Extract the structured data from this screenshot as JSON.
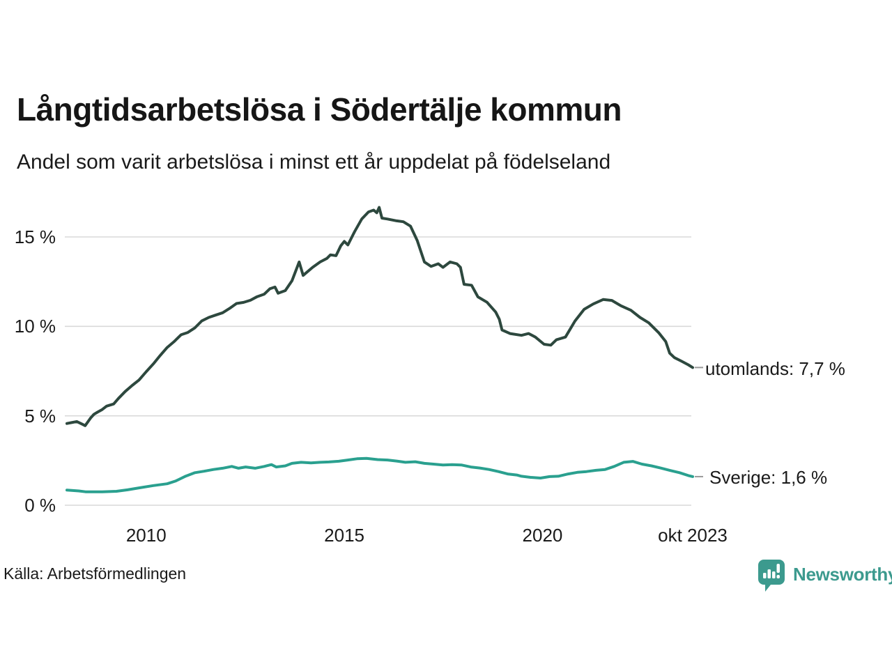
{
  "header": {
    "title": "Långtidsarbetslösa i Södertälje kommun",
    "subtitle": "Andel som varit arbetslösa i minst ett år uppdelat på födelseland"
  },
  "footer": {
    "source": "Källa: Arbetsförmedlingen",
    "brand_name": "Newsworthy",
    "brand_color": "#3c9a8e"
  },
  "chart_data": {
    "type": "line",
    "title": "Långtidsarbetslösa i Södertälje kommun",
    "subtitle": "Andel som varit arbetslösa i minst ett år uppdelat på födelseland",
    "unit": "%",
    "x_domain": [
      2008.0,
      2023.79
    ],
    "ylim": [
      0,
      17.5
    ],
    "grid": "horizontal",
    "gridline_color": "#d9d9d9",
    "connector_color": "#999999",
    "legend_position": "right-end-labels",
    "y_ticks": [
      {
        "v": 0,
        "label": "0 %"
      },
      {
        "v": 5,
        "label": "5 %"
      },
      {
        "v": 10,
        "label": "10 %"
      },
      {
        "v": 15,
        "label": "15 %"
      }
    ],
    "x_ticks": [
      {
        "v": 2010,
        "label": "2010"
      },
      {
        "v": 2015,
        "label": "2015"
      },
      {
        "v": 2020,
        "label": "2020"
      },
      {
        "v": 2023.79,
        "label": "okt 2023"
      }
    ],
    "series": [
      {
        "name": "utomlands",
        "label": "utomlands: 7,7 %",
        "last_value": 7.7,
        "color": "#2d483e",
        "points": [
          [
            2008.0,
            4.57
          ],
          [
            2008.12,
            4.62
          ],
          [
            2008.25,
            4.68
          ],
          [
            2008.37,
            4.55
          ],
          [
            2008.46,
            4.45
          ],
          [
            2008.6,
            4.88
          ],
          [
            2008.68,
            5.08
          ],
          [
            2008.77,
            5.2
          ],
          [
            2008.89,
            5.35
          ],
          [
            2009.0,
            5.54
          ],
          [
            2009.18,
            5.66
          ],
          [
            2009.3,
            5.97
          ],
          [
            2009.47,
            6.36
          ],
          [
            2009.65,
            6.7
          ],
          [
            2009.82,
            7.0
          ],
          [
            2010.0,
            7.46
          ],
          [
            2010.18,
            7.9
          ],
          [
            2010.35,
            8.36
          ],
          [
            2010.53,
            8.82
          ],
          [
            2010.7,
            9.14
          ],
          [
            2010.88,
            9.53
          ],
          [
            2011.05,
            9.66
          ],
          [
            2011.23,
            9.92
          ],
          [
            2011.4,
            10.3
          ],
          [
            2011.58,
            10.5
          ],
          [
            2011.75,
            10.63
          ],
          [
            2011.93,
            10.76
          ],
          [
            2012.1,
            11.0
          ],
          [
            2012.28,
            11.28
          ],
          [
            2012.46,
            11.34
          ],
          [
            2012.63,
            11.46
          ],
          [
            2012.8,
            11.66
          ],
          [
            2012.98,
            11.8
          ],
          [
            2013.12,
            12.1
          ],
          [
            2013.25,
            12.2
          ],
          [
            2013.33,
            11.85
          ],
          [
            2013.51,
            12.0
          ],
          [
            2013.68,
            12.55
          ],
          [
            2013.86,
            13.6
          ],
          [
            2013.96,
            12.85
          ],
          [
            2014.2,
            13.3
          ],
          [
            2014.39,
            13.6
          ],
          [
            2014.56,
            13.8
          ],
          [
            2014.65,
            14.0
          ],
          [
            2014.79,
            13.95
          ],
          [
            2014.91,
            14.5
          ],
          [
            2015.0,
            14.75
          ],
          [
            2015.09,
            14.55
          ],
          [
            2015.26,
            15.3
          ],
          [
            2015.44,
            16.0
          ],
          [
            2015.61,
            16.4
          ],
          [
            2015.74,
            16.5
          ],
          [
            2015.82,
            16.35
          ],
          [
            2015.88,
            16.65
          ],
          [
            2015.95,
            16.05
          ],
          [
            2016.09,
            16.0
          ],
          [
            2016.32,
            15.9
          ],
          [
            2016.49,
            15.85
          ],
          [
            2016.67,
            15.6
          ],
          [
            2016.84,
            14.8
          ],
          [
            2017.02,
            13.6
          ],
          [
            2017.19,
            13.35
          ],
          [
            2017.37,
            13.5
          ],
          [
            2017.49,
            13.3
          ],
          [
            2017.67,
            13.6
          ],
          [
            2017.84,
            13.5
          ],
          [
            2017.93,
            13.3
          ],
          [
            2018.02,
            12.35
          ],
          [
            2018.21,
            12.3
          ],
          [
            2018.37,
            11.65
          ],
          [
            2018.6,
            11.35
          ],
          [
            2018.82,
            10.8
          ],
          [
            2018.91,
            10.4
          ],
          [
            2018.98,
            9.8
          ],
          [
            2019.18,
            9.6
          ],
          [
            2019.47,
            9.5
          ],
          [
            2019.65,
            9.6
          ],
          [
            2019.82,
            9.4
          ],
          [
            2020.04,
            9.0
          ],
          [
            2020.21,
            8.95
          ],
          [
            2020.35,
            9.25
          ],
          [
            2020.58,
            9.4
          ],
          [
            2020.82,
            10.3
          ],
          [
            2021.05,
            10.95
          ],
          [
            2021.28,
            11.25
          ],
          [
            2021.53,
            11.5
          ],
          [
            2021.75,
            11.45
          ],
          [
            2021.98,
            11.15
          ],
          [
            2022.23,
            10.9
          ],
          [
            2022.46,
            10.5
          ],
          [
            2022.68,
            10.2
          ],
          [
            2022.93,
            9.65
          ],
          [
            2023.11,
            9.15
          ],
          [
            2023.21,
            8.5
          ],
          [
            2023.33,
            8.25
          ],
          [
            2023.51,
            8.05
          ],
          [
            2023.68,
            7.85
          ],
          [
            2023.79,
            7.7
          ]
        ]
      },
      {
        "name": "Sverige",
        "label": "Sverige: 1,6 %",
        "last_value": 1.6,
        "color": "#2aa08f",
        "points": [
          [
            2008.0,
            0.85
          ],
          [
            2008.3,
            0.8
          ],
          [
            2008.47,
            0.75
          ],
          [
            2008.89,
            0.75
          ],
          [
            2009.25,
            0.78
          ],
          [
            2009.53,
            0.86
          ],
          [
            2009.82,
            0.97
          ],
          [
            2010.18,
            1.1
          ],
          [
            2010.53,
            1.2
          ],
          [
            2010.75,
            1.36
          ],
          [
            2011.0,
            1.63
          ],
          [
            2011.23,
            1.82
          ],
          [
            2011.46,
            1.9
          ],
          [
            2011.7,
            2.0
          ],
          [
            2011.93,
            2.07
          ],
          [
            2012.16,
            2.17
          ],
          [
            2012.33,
            2.07
          ],
          [
            2012.51,
            2.14
          ],
          [
            2012.75,
            2.07
          ],
          [
            2012.98,
            2.17
          ],
          [
            2013.16,
            2.27
          ],
          [
            2013.28,
            2.14
          ],
          [
            2013.51,
            2.2
          ],
          [
            2013.68,
            2.34
          ],
          [
            2013.91,
            2.4
          ],
          [
            2014.16,
            2.37
          ],
          [
            2014.39,
            2.4
          ],
          [
            2014.61,
            2.42
          ],
          [
            2014.86,
            2.46
          ],
          [
            2015.09,
            2.53
          ],
          [
            2015.32,
            2.6
          ],
          [
            2015.56,
            2.62
          ],
          [
            2015.84,
            2.55
          ],
          [
            2016.09,
            2.53
          ],
          [
            2016.32,
            2.47
          ],
          [
            2016.54,
            2.4
          ],
          [
            2016.79,
            2.43
          ],
          [
            2017.02,
            2.34
          ],
          [
            2017.25,
            2.3
          ],
          [
            2017.49,
            2.25
          ],
          [
            2017.72,
            2.27
          ],
          [
            2017.95,
            2.25
          ],
          [
            2018.19,
            2.14
          ],
          [
            2018.42,
            2.08
          ],
          [
            2018.65,
            2.0
          ],
          [
            2018.89,
            1.88
          ],
          [
            2019.12,
            1.75
          ],
          [
            2019.35,
            1.69
          ],
          [
            2019.47,
            1.62
          ],
          [
            2019.7,
            1.56
          ],
          [
            2019.95,
            1.52
          ],
          [
            2020.18,
            1.6
          ],
          [
            2020.4,
            1.62
          ],
          [
            2020.65,
            1.75
          ],
          [
            2020.88,
            1.84
          ],
          [
            2021.11,
            1.88
          ],
          [
            2021.35,
            1.95
          ],
          [
            2021.58,
            2.0
          ],
          [
            2021.81,
            2.17
          ],
          [
            2022.05,
            2.4
          ],
          [
            2022.28,
            2.45
          ],
          [
            2022.51,
            2.3
          ],
          [
            2022.75,
            2.2
          ],
          [
            2022.98,
            2.08
          ],
          [
            2023.21,
            1.95
          ],
          [
            2023.46,
            1.82
          ],
          [
            2023.68,
            1.66
          ],
          [
            2023.79,
            1.6
          ]
        ]
      }
    ]
  }
}
